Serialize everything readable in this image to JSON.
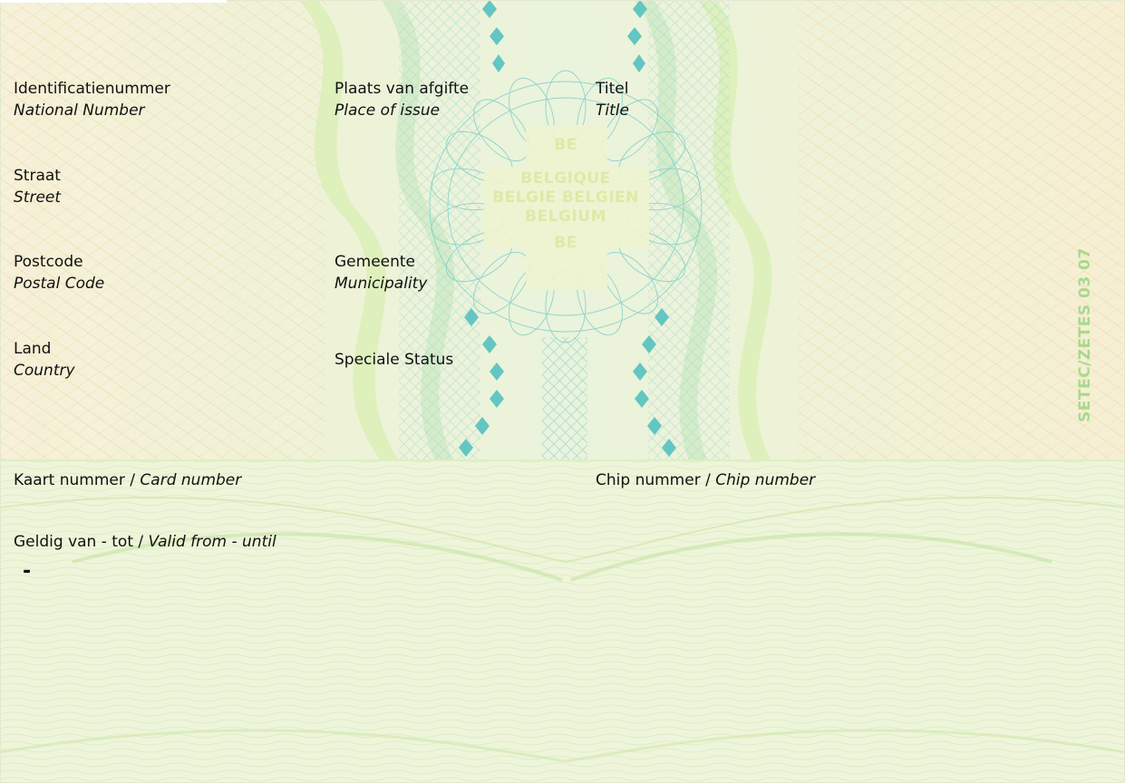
{
  "card": {
    "colors": {
      "top_background": "#f4f5dc",
      "bottom_background": "#eef5da",
      "guilloche_teal": "#6cc8c4",
      "guilloche_green": "#c9e8a6",
      "guilloche_orange": "#f0cf9a",
      "text": "#111111"
    },
    "fields": {
      "national_number": {
        "nl": "Identificatienummer",
        "en": "National Number"
      },
      "place_of_issue": {
        "nl": "Plaats van afgifte",
        "en": "Place of issue"
      },
      "title": {
        "nl": "Titel",
        "en": "Title"
      },
      "street": {
        "nl": "Straat",
        "en": "Street"
      },
      "postal_code": {
        "nl": "Postcode",
        "en": "Postal Code"
      },
      "municipality": {
        "nl": "Gemeente",
        "en": "Municipality"
      },
      "country": {
        "nl": "Land",
        "en": "Country"
      },
      "special_status": {
        "nl": "Speciale Status"
      },
      "card_number": {
        "nl": "Kaart nummer",
        "sep": " / ",
        "en": "Card number"
      },
      "chip_number": {
        "nl": "Chip nummer",
        "sep": " / ",
        "en": "Chip number"
      },
      "validity": {
        "nl": "Geldig van - tot",
        "sep": " / ",
        "en": "Valid from - until",
        "value": "-"
      }
    },
    "emblem": {
      "line1": "BE",
      "line2": "BELGIQUE",
      "line3": "BELGIE BELGIEN",
      "line4": "BELGIUM",
      "line5": "BE"
    },
    "printer_code": "SETEC/ZETES  03 07"
  }
}
